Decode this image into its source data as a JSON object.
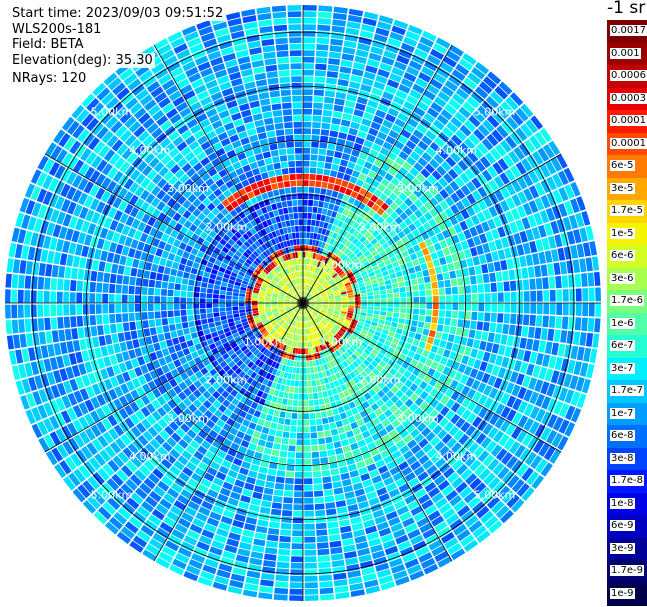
{
  "info": {
    "start_time": "Start time: 2023/09/03 09:51:52",
    "device": "WLS200s-181",
    "field": "Field: BETA",
    "elevation": "Elevation(deg): 35.30",
    "nrays": "NRays: 120"
  },
  "colorbar": {
    "units": "-1 sr",
    "labels": [
      "0.0017",
      "0.001",
      "0.0006",
      "0.0003",
      "0.00017",
      "0.0001",
      "6e-5",
      "3e-5",
      "1.7e-5",
      "1e-5",
      "6e-6",
      "3e-6",
      "1.7e-6",
      "1e-6",
      "6e-7",
      "3e-7",
      "1.7e-7",
      "1e-7",
      "6e-8",
      "3e-8",
      "1.7e-8",
      "1e-8",
      "6e-9",
      "3e-9",
      "1.7e-9",
      "1e-9"
    ],
    "colors": [
      "#7f0000",
      "#9e0000",
      "#c40000",
      "#e60000",
      "#ff1a00",
      "#ff4a00",
      "#ff7a00",
      "#ffa800",
      "#ffd400",
      "#f5f500",
      "#d4ff24",
      "#a8ff50",
      "#7aff7e",
      "#50ffa8",
      "#24ffd4",
      "#00f0ff",
      "#00c8ff",
      "#009cff",
      "#0070ff",
      "#0044ff",
      "#0018ff",
      "#0000e8",
      "#0000c0",
      "#000098",
      "#000070",
      "#00004a"
    ]
  },
  "chart_data": {
    "type": "heatmap",
    "projection": "polar PPI",
    "range_rings_km": [
      1,
      2,
      3,
      4,
      5
    ],
    "range_labels": [
      "1.00km",
      "2.00km",
      "3.00km",
      "4.00km",
      "5.00km"
    ],
    "max_range_km": 5.5,
    "n_rays": 120,
    "color_scale": "log",
    "value_range": [
      1e-09,
      0.0017
    ]
  }
}
